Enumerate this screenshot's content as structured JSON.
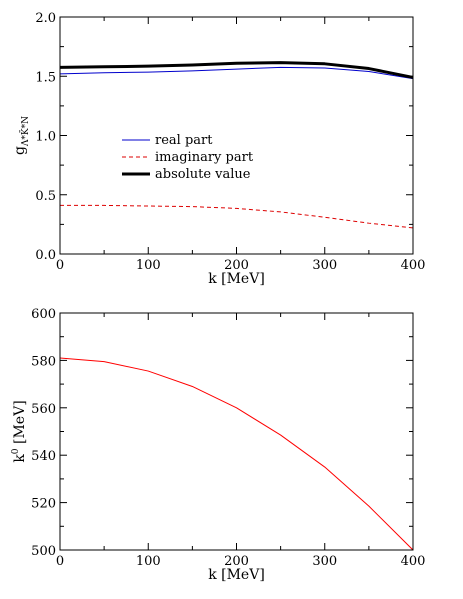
{
  "chart_data": [
    {
      "type": "line",
      "xlabel": "k [MeV]",
      "ylabel": {
        "base": "g",
        "sub": "Λ*K̄*N"
      },
      "xlim": [
        0,
        400
      ],
      "ylim": [
        0.0,
        2.0
      ],
      "xticks": [
        0,
        100,
        200,
        300,
        400
      ],
      "xtick_labels": [
        "0",
        "100",
        "200",
        "300",
        "400"
      ],
      "yticks": [
        0.0,
        0.5,
        1.0,
        1.5,
        2.0
      ],
      "ytick_labels": [
        "0.0",
        "0.5",
        "1.0",
        "1.5",
        "2.0"
      ],
      "grid": false,
      "legend_position": "center-left",
      "series": [
        {
          "name": "real part",
          "color": "#0000cc",
          "style": "solid",
          "x": [
            0,
            50,
            100,
            150,
            200,
            250,
            300,
            350,
            400
          ],
          "y": [
            1.52,
            1.53,
            1.535,
            1.545,
            1.56,
            1.575,
            1.57,
            1.54,
            1.48
          ]
        },
        {
          "name": "imaginary part",
          "color": "#dd0000",
          "style": "dashed",
          "x": [
            0,
            50,
            100,
            150,
            200,
            250,
            300,
            350,
            400
          ],
          "y": [
            0.41,
            0.41,
            0.405,
            0.4,
            0.385,
            0.355,
            0.31,
            0.26,
            0.22
          ]
        },
        {
          "name": "absolute value",
          "color": "#000000",
          "style": "thick",
          "x": [
            0,
            50,
            100,
            150,
            200,
            250,
            300,
            350,
            400
          ],
          "y": [
            1.575,
            1.58,
            1.585,
            1.595,
            1.61,
            1.615,
            1.605,
            1.565,
            1.49
          ]
        }
      ]
    },
    {
      "type": "line",
      "xlabel": "k [MeV]",
      "ylabel": {
        "base": "k",
        "sup": "0",
        "unit": " [MeV]"
      },
      "xlim": [
        0,
        400
      ],
      "ylim": [
        500,
        600
      ],
      "xticks": [
        0,
        100,
        200,
        300,
        400
      ],
      "xtick_labels": [
        "0",
        "100",
        "200",
        "300",
        "400"
      ],
      "yticks": [
        500,
        520,
        540,
        560,
        580,
        600
      ],
      "ytick_labels": [
        "500",
        "520",
        "540",
        "560",
        "580",
        "600"
      ],
      "grid": false,
      "series": [
        {
          "color": "#ff0000",
          "style": "solid",
          "x": [
            0,
            50,
            100,
            150,
            200,
            250,
            300,
            350,
            400
          ],
          "y": [
            581,
            579.5,
            575.5,
            569,
            560,
            548.5,
            535,
            518.5,
            500
          ]
        }
      ]
    }
  ]
}
